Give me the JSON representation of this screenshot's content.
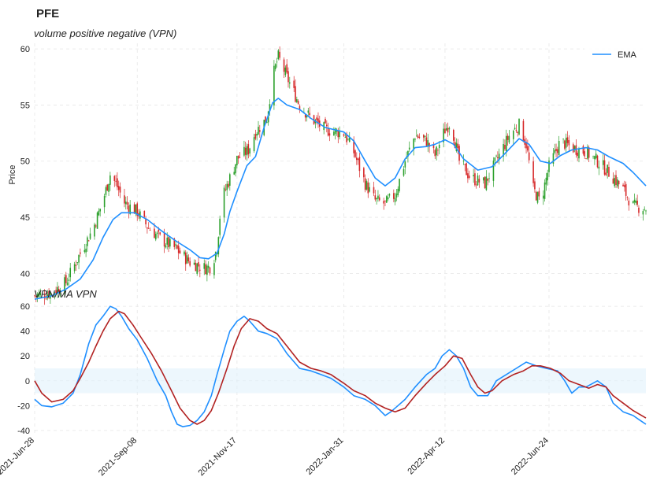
{
  "figure_title": "PFE",
  "chart_data": [
    {
      "type": "candlestick",
      "title": "volume positive negative (VPN)",
      "ylabel": "Price",
      "ylim": [
        37.5,
        60.5
      ],
      "yticks": [
        40,
        45,
        50,
        55,
        60
      ],
      "legend": {
        "position": "top-right",
        "entries": [
          "EMA"
        ]
      },
      "colors": {
        "up": "#2ca02c",
        "down": "#d62728",
        "ema": "#1f8fff"
      },
      "date_range": [
        "2021-06-28",
        "2022-08-31"
      ],
      "close_path": [
        [
          "2021-06-28",
          38.0
        ],
        [
          "2021-07-10",
          38.3
        ],
        [
          "2021-07-20",
          39.2
        ],
        [
          "2021-07-30",
          41.8
        ],
        [
          "2021-08-08",
          44.0
        ],
        [
          "2021-08-15",
          46.5
        ],
        [
          "2021-08-20",
          48.8
        ],
        [
          "2021-08-24",
          48.0
        ],
        [
          "2021-08-30",
          46.3
        ],
        [
          "2021-09-08",
          45.5
        ],
        [
          "2021-09-15",
          44.2
        ],
        [
          "2021-09-25",
          43.0
        ],
        [
          "2021-10-05",
          42.2
        ],
        [
          "2021-10-15",
          41.0
        ],
        [
          "2021-10-25",
          40.5
        ],
        [
          "2021-10-30",
          40.6
        ],
        [
          "2021-11-03",
          42.3
        ],
        [
          "2021-11-06",
          46.5
        ],
        [
          "2021-11-12",
          48.5
        ],
        [
          "2021-11-17",
          50.2
        ],
        [
          "2021-11-25",
          51.0
        ],
        [
          "2021-11-30",
          52.6
        ],
        [
          "2021-12-08",
          53.8
        ],
        [
          "2021-12-12",
          57.5
        ],
        [
          "2021-12-16",
          59.3
        ],
        [
          "2021-12-22",
          57.5
        ],
        [
          "2021-12-31",
          55.0
        ],
        [
          "2022-01-08",
          53.8
        ],
        [
          "2022-01-18",
          52.8
        ],
        [
          "2022-01-31",
          52.5
        ],
        [
          "2022-02-07",
          50.8
        ],
        [
          "2022-02-15",
          48.0
        ],
        [
          "2022-02-22",
          46.5
        ],
        [
          "2022-03-01",
          46.2
        ],
        [
          "2022-03-08",
          47.0
        ],
        [
          "2022-03-15",
          50.0
        ],
        [
          "2022-03-22",
          52.3
        ],
        [
          "2022-03-30",
          51.8
        ],
        [
          "2022-04-05",
          50.5
        ],
        [
          "2022-04-12",
          52.8
        ],
        [
          "2022-04-16",
          53.5
        ],
        [
          "2022-04-22",
          50.0
        ],
        [
          "2022-04-30",
          48.5
        ],
        [
          "2022-05-10",
          48.0
        ],
        [
          "2022-05-20",
          50.5
        ],
        [
          "2022-05-28",
          52.5
        ],
        [
          "2022-06-03",
          53.2
        ],
        [
          "2022-06-08",
          51.5
        ],
        [
          "2022-06-13",
          47.5
        ],
        [
          "2022-06-18",
          46.3
        ],
        [
          "2022-06-24",
          49.5
        ],
        [
          "2022-07-02",
          51.8
        ],
        [
          "2022-07-10",
          51.2
        ],
        [
          "2022-07-20",
          50.8
        ],
        [
          "2022-07-28",
          50.0
        ],
        [
          "2022-08-05",
          49.0
        ],
        [
          "2022-08-15",
          47.5
        ],
        [
          "2022-08-22",
          46.0
        ],
        [
          "2022-08-31",
          45.8
        ]
      ],
      "ema": [
        [
          "2021-06-28",
          37.7
        ],
        [
          "2021-07-10",
          38.0
        ],
        [
          "2021-07-20",
          38.6
        ],
        [
          "2021-07-30",
          39.5
        ],
        [
          "2021-08-08",
          41.2
        ],
        [
          "2021-08-15",
          43.2
        ],
        [
          "2021-08-22",
          44.8
        ],
        [
          "2021-08-28",
          45.4
        ],
        [
          "2021-09-06",
          45.4
        ],
        [
          "2021-09-15",
          44.8
        ],
        [
          "2021-09-25",
          43.8
        ],
        [
          "2021-10-05",
          42.9
        ],
        [
          "2021-10-15",
          42.1
        ],
        [
          "2021-10-22",
          41.4
        ],
        [
          "2021-10-28",
          41.3
        ],
        [
          "2021-11-03",
          41.8
        ],
        [
          "2021-11-08",
          43.5
        ],
        [
          "2021-11-12",
          45.5
        ],
        [
          "2021-11-17",
          47.3
        ],
        [
          "2021-11-24",
          49.6
        ],
        [
          "2021-11-30",
          50.4
        ],
        [
          "2021-12-06",
          53.0
        ],
        [
          "2021-12-12",
          55.2
        ],
        [
          "2021-12-16",
          55.6
        ],
        [
          "2021-12-22",
          55.0
        ],
        [
          "2021-12-31",
          54.6
        ],
        [
          "2022-01-08",
          53.8
        ],
        [
          "2022-01-18",
          53.0
        ],
        [
          "2022-01-31",
          52.6
        ],
        [
          "2022-02-07",
          51.8
        ],
        [
          "2022-02-15",
          50.0
        ],
        [
          "2022-02-22",
          48.5
        ],
        [
          "2022-03-01",
          47.8
        ],
        [
          "2022-03-08",
          48.5
        ],
        [
          "2022-03-15",
          50.2
        ],
        [
          "2022-03-22",
          51.2
        ],
        [
          "2022-03-30",
          51.3
        ],
        [
          "2022-04-05",
          51.5
        ],
        [
          "2022-04-12",
          51.9
        ],
        [
          "2022-04-18",
          51.5
        ],
        [
          "2022-04-25",
          50.2
        ],
        [
          "2022-05-05",
          49.2
        ],
        [
          "2022-05-15",
          49.5
        ],
        [
          "2022-05-25",
          50.8
        ],
        [
          "2022-06-03",
          52.0
        ],
        [
          "2022-06-10",
          51.5
        ],
        [
          "2022-06-18",
          50.0
        ],
        [
          "2022-06-25",
          49.8
        ],
        [
          "2022-07-02",
          50.5
        ],
        [
          "2022-07-10",
          51.0
        ],
        [
          "2022-07-20",
          51.2
        ],
        [
          "2022-07-28",
          51.0
        ],
        [
          "2022-08-05",
          50.4
        ],
        [
          "2022-08-15",
          49.8
        ],
        [
          "2022-08-22",
          49.0
        ],
        [
          "2022-08-31",
          47.8
        ]
      ]
    },
    {
      "type": "line",
      "title": "VPN/MA VPN",
      "ylim": [
        -42,
        62
      ],
      "yticks": [
        -40,
        -20,
        0,
        20,
        40,
        60
      ],
      "band": [
        -10,
        10
      ],
      "xticks": [
        "2021-Jun-28",
        "2021-Sep-08",
        "2021-Nov-17",
        "2022-Jan-31",
        "2022-Apr-12",
        "2022-Jun-24"
      ],
      "x_domain": [
        "2021-06-28",
        "2022-08-31"
      ],
      "series": [
        {
          "color": "#1f8fff",
          "points": [
            [
              "2021-06-28",
              -15
            ],
            [
              "2021-07-03",
              -20
            ],
            [
              "2021-07-10",
              -21
            ],
            [
              "2021-07-18",
              -18
            ],
            [
              "2021-07-25",
              -10
            ],
            [
              "2021-07-30",
              5
            ],
            [
              "2021-08-05",
              30
            ],
            [
              "2021-08-10",
              45
            ],
            [
              "2021-08-15",
              52
            ],
            [
              "2021-08-20",
              60
            ],
            [
              "2021-08-24",
              58
            ],
            [
              "2021-08-28",
              52
            ],
            [
              "2021-09-02",
              42
            ],
            [
              "2021-09-08",
              33
            ],
            [
              "2021-09-15",
              18
            ],
            [
              "2021-09-22",
              0
            ],
            [
              "2021-09-28",
              -12
            ],
            [
              "2021-10-02",
              -25
            ],
            [
              "2021-10-06",
              -35
            ],
            [
              "2021-10-10",
              -37
            ],
            [
              "2021-10-15",
              -36
            ],
            [
              "2021-10-20",
              -32
            ],
            [
              "2021-10-25",
              -25
            ],
            [
              "2021-10-30",
              -12
            ],
            [
              "2021-11-03",
              5
            ],
            [
              "2021-11-08",
              25
            ],
            [
              "2021-11-12",
              40
            ],
            [
              "2021-11-17",
              48
            ],
            [
              "2021-11-22",
              52
            ],
            [
              "2021-11-26",
              48
            ],
            [
              "2021-12-02",
              40
            ],
            [
              "2021-12-08",
              38
            ],
            [
              "2021-12-15",
              34
            ],
            [
              "2021-12-22",
              22
            ],
            [
              "2021-12-31",
              10
            ],
            [
              "2022-01-08",
              8
            ],
            [
              "2022-01-15",
              5
            ],
            [
              "2022-01-22",
              2
            ],
            [
              "2022-01-31",
              -5
            ],
            [
              "2022-02-07",
              -12
            ],
            [
              "2022-02-15",
              -15
            ],
            [
              "2022-02-22",
              -20
            ],
            [
              "2022-03-01",
              -28
            ],
            [
              "2022-03-05",
              -25
            ],
            [
              "2022-03-10",
              -20
            ],
            [
              "2022-03-15",
              -15
            ],
            [
              "2022-03-22",
              -5
            ],
            [
              "2022-03-30",
              5
            ],
            [
              "2022-04-05",
              10
            ],
            [
              "2022-04-10",
              20
            ],
            [
              "2022-04-15",
              25
            ],
            [
              "2022-04-20",
              20
            ],
            [
              "2022-04-25",
              10
            ],
            [
              "2022-04-30",
              -5
            ],
            [
              "2022-05-05",
              -12
            ],
            [
              "2022-05-12",
              -12
            ],
            [
              "2022-05-18",
              0
            ],
            [
              "2022-05-25",
              5
            ],
            [
              "2022-06-01",
              10
            ],
            [
              "2022-06-08",
              15
            ],
            [
              "2022-06-15",
              12
            ],
            [
              "2022-06-22",
              10
            ],
            [
              "2022-06-30",
              8
            ],
            [
              "2022-07-05",
              0
            ],
            [
              "2022-07-10",
              -10
            ],
            [
              "2022-07-15",
              -5
            ],
            [
              "2022-07-20",
              -5
            ],
            [
              "2022-07-28",
              0
            ],
            [
              "2022-08-03",
              -5
            ],
            [
              "2022-08-08",
              -18
            ],
            [
              "2022-08-15",
              -25
            ],
            [
              "2022-08-22",
              -28
            ],
            [
              "2022-08-27",
              -32
            ],
            [
              "2022-08-31",
              -35
            ]
          ]
        },
        {
          "color": "#b22222",
          "points": [
            [
              "2021-06-28",
              0
            ],
            [
              "2021-07-03",
              -10
            ],
            [
              "2021-07-10",
              -17
            ],
            [
              "2021-07-18",
              -15
            ],
            [
              "2021-07-25",
              -8
            ],
            [
              "2021-07-30",
              2
            ],
            [
              "2021-08-05",
              15
            ],
            [
              "2021-08-10",
              28
            ],
            [
              "2021-08-15",
              40
            ],
            [
              "2021-08-20",
              50
            ],
            [
              "2021-08-26",
              56
            ],
            [
              "2021-08-30",
              54
            ],
            [
              "2021-09-05",
              45
            ],
            [
              "2021-09-10",
              36
            ],
            [
              "2021-09-18",
              22
            ],
            [
              "2021-09-25",
              8
            ],
            [
              "2021-10-02",
              -8
            ],
            [
              "2021-10-08",
              -22
            ],
            [
              "2021-10-15",
              -32
            ],
            [
              "2021-10-20",
              -35
            ],
            [
              "2021-10-25",
              -32
            ],
            [
              "2021-10-30",
              -24
            ],
            [
              "2021-11-04",
              -10
            ],
            [
              "2021-11-10",
              10
            ],
            [
              "2021-11-15",
              28
            ],
            [
              "2021-11-20",
              42
            ],
            [
              "2021-11-26",
              50
            ],
            [
              "2021-12-02",
              48
            ],
            [
              "2021-12-08",
              42
            ],
            [
              "2021-12-15",
              38
            ],
            [
              "2021-12-22",
              28
            ],
            [
              "2021-12-31",
              15
            ],
            [
              "2022-01-08",
              10
            ],
            [
              "2022-01-15",
              8
            ],
            [
              "2022-01-22",
              5
            ],
            [
              "2022-01-31",
              -2
            ],
            [
              "2022-02-07",
              -8
            ],
            [
              "2022-02-15",
              -12
            ],
            [
              "2022-02-22",
              -18
            ],
            [
              "2022-03-01",
              -22
            ],
            [
              "2022-03-08",
              -25
            ],
            [
              "2022-03-15",
              -22
            ],
            [
              "2022-03-22",
              -12
            ],
            [
              "2022-03-30",
              -2
            ],
            [
              "2022-04-05",
              5
            ],
            [
              "2022-04-12",
              12
            ],
            [
              "2022-04-18",
              20
            ],
            [
              "2022-04-24",
              18
            ],
            [
              "2022-04-30",
              5
            ],
            [
              "2022-05-05",
              -5
            ],
            [
              "2022-05-10",
              -10
            ],
            [
              "2022-05-15",
              -8
            ],
            [
              "2022-05-22",
              0
            ],
            [
              "2022-05-30",
              5
            ],
            [
              "2022-06-06",
              8
            ],
            [
              "2022-06-12",
              12
            ],
            [
              "2022-06-18",
              12
            ],
            [
              "2022-06-25",
              10
            ],
            [
              "2022-07-02",
              6
            ],
            [
              "2022-07-08",
              0
            ],
            [
              "2022-07-15",
              -3
            ],
            [
              "2022-07-22",
              -6
            ],
            [
              "2022-07-28",
              -3
            ],
            [
              "2022-08-03",
              -5
            ],
            [
              "2022-08-08",
              -12
            ],
            [
              "2022-08-15",
              -18
            ],
            [
              "2022-08-22",
              -24
            ],
            [
              "2022-08-31",
              -30
            ]
          ]
        }
      ]
    }
  ]
}
